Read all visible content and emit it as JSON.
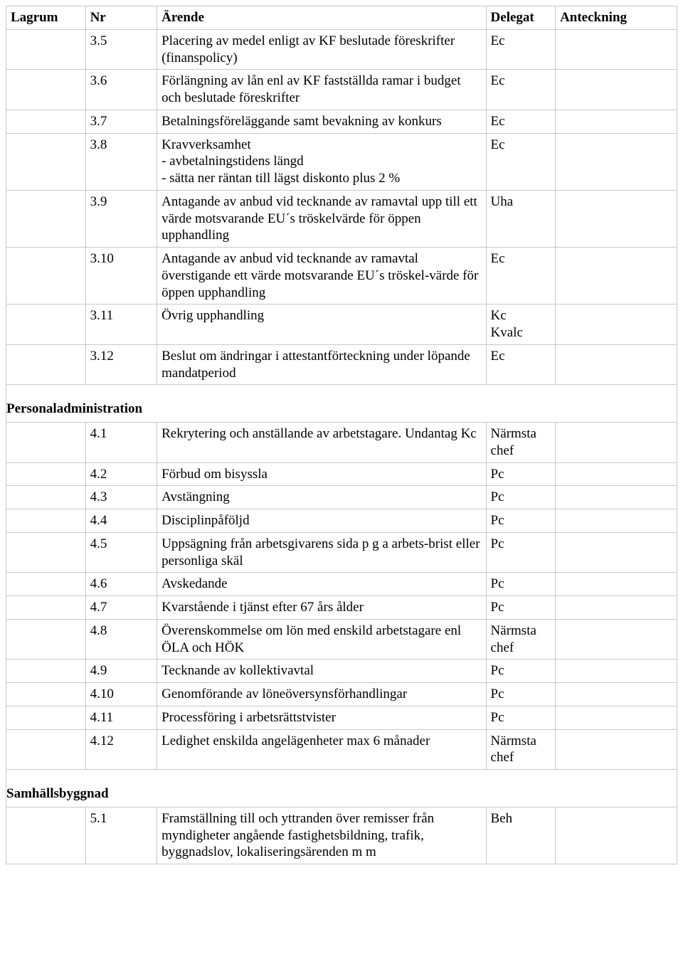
{
  "columns": {
    "lagrum": "Lagrum",
    "nr": "Nr",
    "arende": "Ärende",
    "delegat": "Delegat",
    "anteckning": "Anteckning"
  },
  "sections": [
    {
      "title": null,
      "rows": [
        {
          "lagrum": "",
          "nr": "3.5",
          "arende": "Placering av medel enligt av KF beslutade föreskrifter (finanspolicy)",
          "delegat": "Ec",
          "ant": ""
        },
        {
          "lagrum": "",
          "nr": "3.6",
          "arende": "Förlängning av lån enl av KF fastställda ramar i budget och beslutade föreskrifter",
          "delegat": "Ec",
          "ant": ""
        },
        {
          "lagrum": "",
          "nr": "3.7",
          "arende": "Betalningsföreläggande samt bevakning av konkurs",
          "delegat": "Ec",
          "ant": ""
        },
        {
          "lagrum": "",
          "nr": "3.8",
          "arende": "Kravverksamhet\n- avbetalningstidens längd\n- sätta ner räntan till lägst diskonto plus 2 %",
          "delegat": "Ec",
          "ant": ""
        },
        {
          "lagrum": "",
          "nr": "3.9",
          "arende": "Antagande av anbud vid tecknande av ramavtal upp till ett värde motsvarande EU´s tröskelvärde för öppen upphandling",
          "delegat": "Uha",
          "ant": ""
        },
        {
          "lagrum": "",
          "nr": "3.10",
          "arende": "Antagande av anbud vid tecknande av ramavtal överstigande ett värde motsvarande EU´s tröskel-värde för öppen upphandling",
          "delegat": "Ec",
          "ant": ""
        },
        {
          "lagrum": "",
          "nr": "3.11",
          "arende": "Övrig upphandling",
          "delegat": "Kc\nKvalc",
          "ant": ""
        },
        {
          "lagrum": "",
          "nr": "3.12",
          "arende": "Beslut om ändringar i attestantförteckning under löpande mandatperiod",
          "delegat": "Ec",
          "ant": ""
        }
      ]
    },
    {
      "title": "Personaladministration",
      "rows": [
        {
          "lagrum": "",
          "nr": "4.1",
          "arende": "Rekrytering och anställande av arbetstagare. Undantag Kc",
          "delegat": "Närmsta chef",
          "ant": ""
        },
        {
          "lagrum": "",
          "nr": "4.2",
          "arende": "Förbud om bisyssla",
          "delegat": "Pc",
          "ant": ""
        },
        {
          "lagrum": "",
          "nr": "4.3",
          "arende": "Avstängning",
          "delegat": "Pc",
          "ant": ""
        },
        {
          "lagrum": "",
          "nr": "4.4",
          "arende": "Disciplinpåföljd",
          "delegat": "Pc",
          "ant": ""
        },
        {
          "lagrum": "",
          "nr": "4.5",
          "arende": "Uppsägning från arbetsgivarens sida p g a arbets-brist eller personliga skäl",
          "delegat": "Pc",
          "ant": ""
        },
        {
          "lagrum": "",
          "nr": "4.6",
          "arende": "Avskedande",
          "delegat": "Pc",
          "ant": ""
        },
        {
          "lagrum": "",
          "nr": "4.7",
          "arende": "Kvarstående i tjänst efter 67 års ålder",
          "delegat": "Pc",
          "ant": ""
        },
        {
          "lagrum": "",
          "nr": "4.8",
          "arende": "Överenskommelse om lön med enskild arbetstagare enl ÖLA och HÖK",
          "delegat": "Närmsta chef",
          "ant": ""
        },
        {
          "lagrum": "",
          "nr": "4.9",
          "arende": "Tecknande av kollektivavtal",
          "delegat": "Pc",
          "ant": ""
        },
        {
          "lagrum": "",
          "nr": "4.10",
          "arende": "Genomförande av löneöversynsförhandlingar",
          "delegat": "Pc",
          "ant": ""
        },
        {
          "lagrum": "",
          "nr": "4.11",
          "arende": "Processföring i arbetsrättstvister",
          "delegat": "Pc",
          "ant": ""
        },
        {
          "lagrum": "",
          "nr": "4.12",
          "arende": "Ledighet enskilda angelägenheter max 6 månader",
          "delegat": "Närmsta chef",
          "ant": ""
        }
      ]
    },
    {
      "title": "Samhällsbyggnad",
      "rows": [
        {
          "lagrum": "",
          "nr": "5.1",
          "arende": "Framställning till och yttranden över remisser från myndigheter angående fastighetsbildning, trafik, byggnadslov, lokaliseringsärenden m m",
          "delegat": "Beh",
          "ant": ""
        }
      ]
    }
  ]
}
